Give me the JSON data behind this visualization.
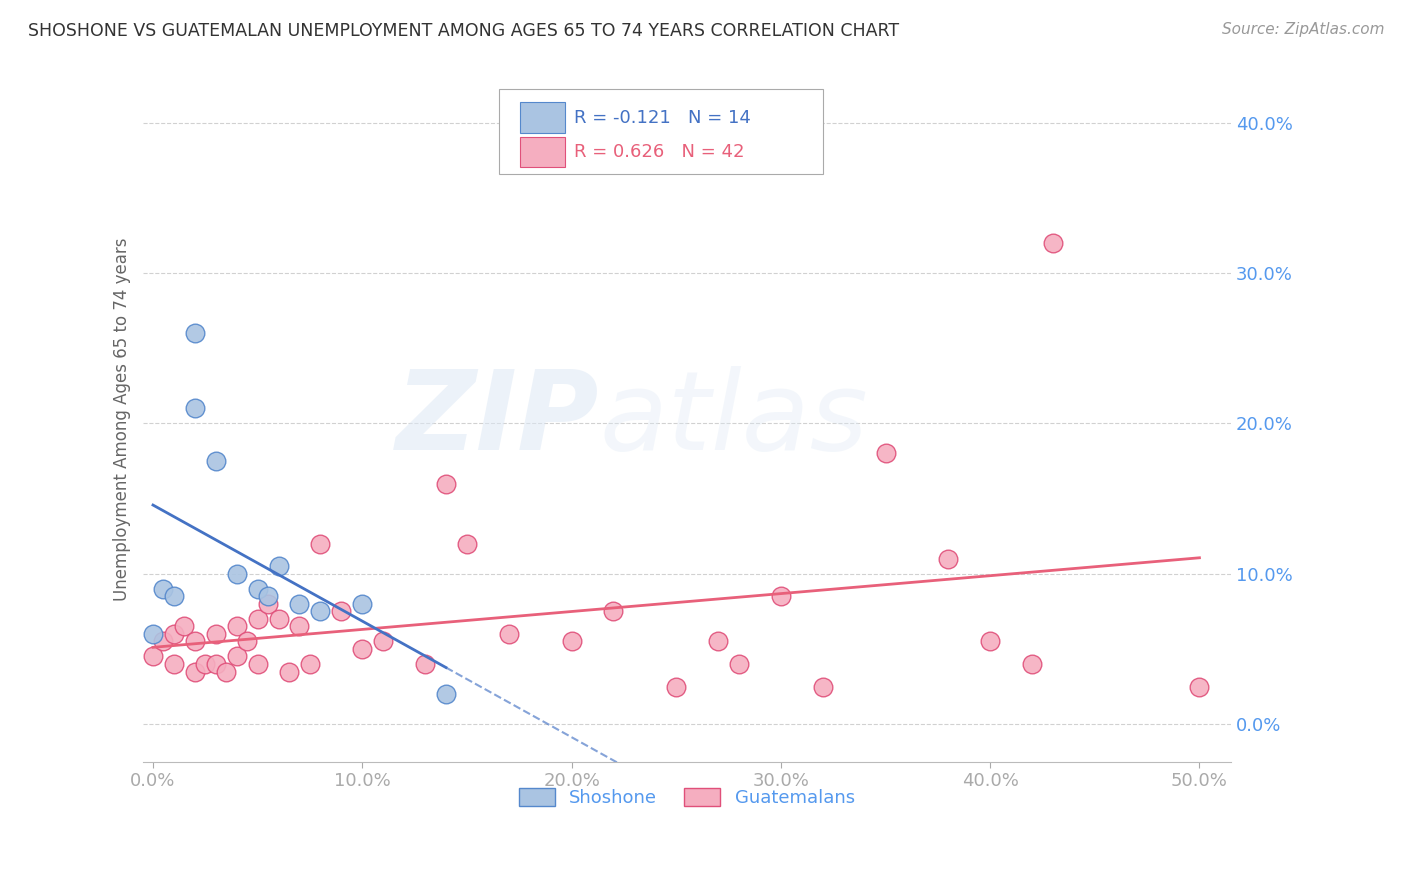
{
  "title": "SHOSHONE VS GUATEMALAN UNEMPLOYMENT AMONG AGES 65 TO 74 YEARS CORRELATION CHART",
  "source": "Source: ZipAtlas.com",
  "ylabel": "Unemployment Among Ages 65 to 74 years",
  "xlabel_ticks": [
    0.0,
    0.1,
    0.2,
    0.3,
    0.4,
    0.5
  ],
  "ylabel_ticks": [
    0.0,
    0.1,
    0.2,
    0.3,
    0.4
  ],
  "xlim": [
    -0.005,
    0.515
  ],
  "ylim": [
    -0.025,
    0.43
  ],
  "shoshone_color": "#aac4e2",
  "shoshone_edge_color": "#5588cc",
  "guatemalan_color": "#f5aec0",
  "guatemalan_edge_color": "#e0507a",
  "shoshone_line_color": "#4472c4",
  "guatemalan_line_color": "#e8607a",
  "shoshone_R": -0.121,
  "shoshone_N": 14,
  "guatemalan_R": 0.626,
  "guatemalan_N": 42,
  "legend_label_shoshone": "Shoshone",
  "legend_label_guatemalan": "Guatemalans",
  "watermark_zip": "ZIP",
  "watermark_atlas": "atlas",
  "shoshone_x": [
    0.0,
    0.005,
    0.01,
    0.02,
    0.02,
    0.03,
    0.04,
    0.05,
    0.055,
    0.06,
    0.07,
    0.08,
    0.1,
    0.14
  ],
  "shoshone_y": [
    0.06,
    0.09,
    0.085,
    0.26,
    0.21,
    0.175,
    0.1,
    0.09,
    0.085,
    0.105,
    0.08,
    0.075,
    0.08,
    0.02
  ],
  "guatemalan_x": [
    0.0,
    0.005,
    0.01,
    0.01,
    0.015,
    0.02,
    0.02,
    0.025,
    0.03,
    0.03,
    0.035,
    0.04,
    0.04,
    0.045,
    0.05,
    0.05,
    0.055,
    0.06,
    0.065,
    0.07,
    0.075,
    0.08,
    0.09,
    0.1,
    0.11,
    0.13,
    0.14,
    0.15,
    0.17,
    0.2,
    0.22,
    0.25,
    0.27,
    0.28,
    0.3,
    0.32,
    0.35,
    0.38,
    0.4,
    0.42,
    0.43,
    0.5
  ],
  "guatemalan_y": [
    0.045,
    0.055,
    0.04,
    0.06,
    0.065,
    0.035,
    0.055,
    0.04,
    0.04,
    0.06,
    0.035,
    0.045,
    0.065,
    0.055,
    0.04,
    0.07,
    0.08,
    0.07,
    0.035,
    0.065,
    0.04,
    0.12,
    0.075,
    0.05,
    0.055,
    0.04,
    0.16,
    0.12,
    0.06,
    0.055,
    0.075,
    0.025,
    0.055,
    0.04,
    0.085,
    0.025,
    0.18,
    0.11,
    0.055,
    0.04,
    0.32,
    0.025
  ],
  "background_color": "#ffffff",
  "grid_color": "#cccccc",
  "tick_color": "#5599ee",
  "title_color": "#333333",
  "source_color": "#999999"
}
